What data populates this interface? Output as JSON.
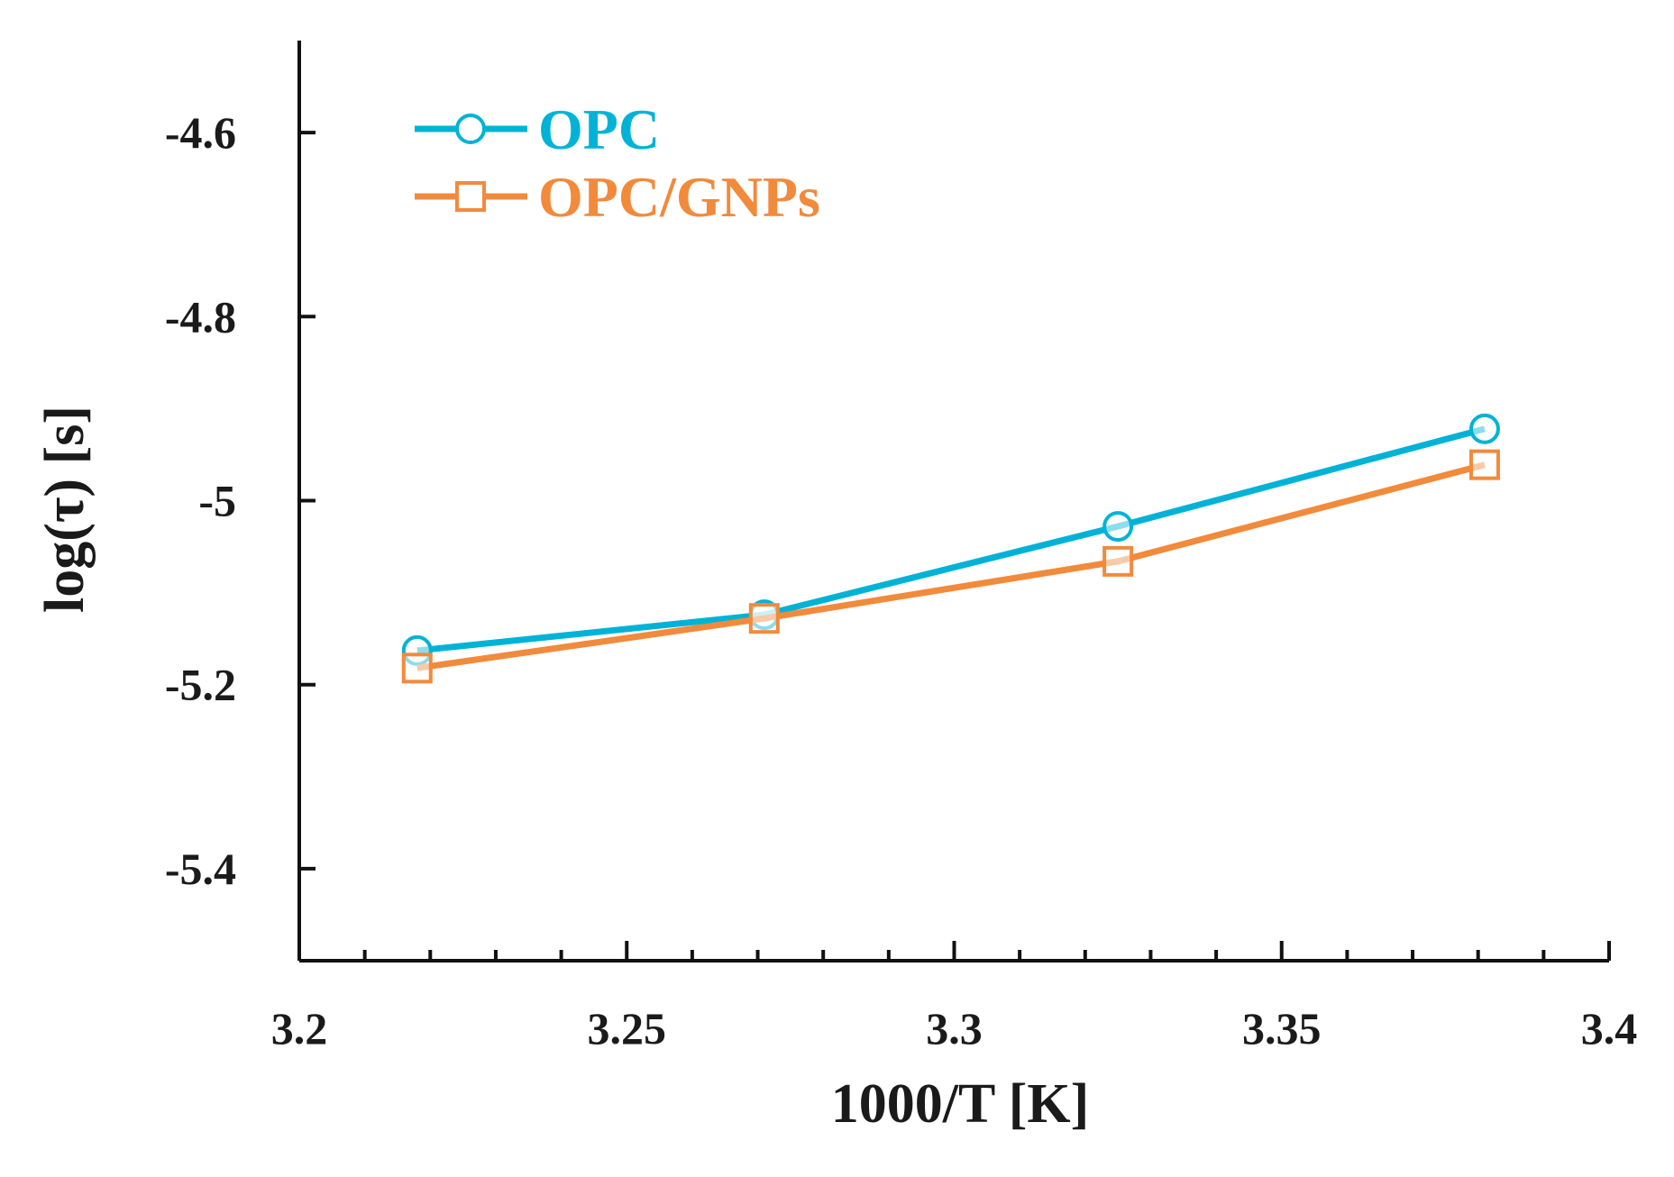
{
  "chart_data": {
    "type": "line",
    "title": "",
    "xlabel": "1000/T [K]",
    "ylabel": "log(τ) [s]",
    "xlim": [
      3.2,
      3.4
    ],
    "ylim": [
      -5.5,
      -4.5
    ],
    "x_major_ticks": [
      3.2,
      3.25,
      3.3,
      3.35,
      3.4
    ],
    "x_tick_labels": [
      "3.2",
      "3.25",
      "3.3",
      "3.35",
      "3.4"
    ],
    "x_minor_step": 0.01,
    "y_ticks": [
      -4.6,
      -4.8,
      -5,
      -5.2,
      -5.4
    ],
    "y_tick_labels": [
      "-4.6",
      "-4.8",
      "-5",
      "-5.2",
      "-5.4"
    ],
    "grid": false,
    "legend_position": "top-left",
    "series": [
      {
        "name": "OPC",
        "color": "#00b3d6",
        "marker": "circle",
        "x": [
          3.218,
          3.271,
          3.325,
          3.381
        ],
        "y": [
          -5.163,
          -5.124,
          -5.028,
          -4.922
        ]
      },
      {
        "name": "OPC/GNPs",
        "color": "#f28a3c",
        "marker": "square",
        "x": [
          3.218,
          3.271,
          3.325,
          3.381
        ],
        "y": [
          -5.182,
          -5.128,
          -5.066,
          -4.961
        ]
      }
    ]
  }
}
